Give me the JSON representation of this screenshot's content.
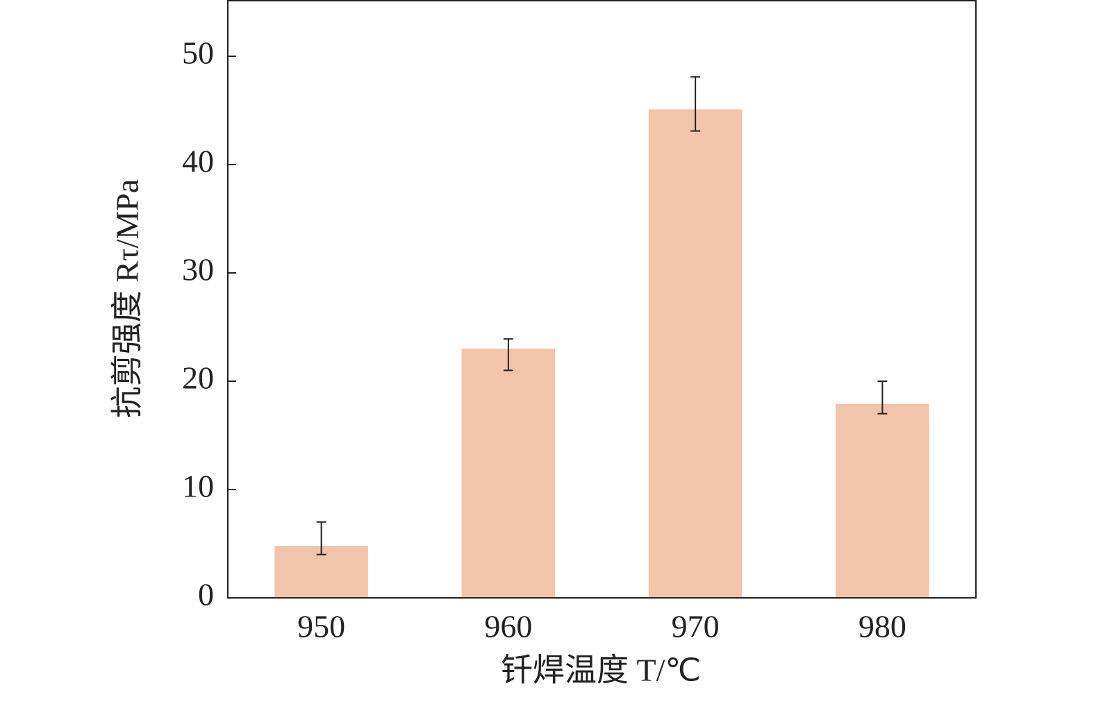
{
  "chart_data": {
    "type": "bar",
    "x_label": "钎焊温度 T/℃",
    "y_label": "抗剪强度 Rτ/MPa",
    "categories": [
      "950",
      "960",
      "970",
      "980"
    ],
    "values": [
      4.8,
      23.0,
      45.1,
      17.9
    ],
    "error_lower": [
      0.8,
      2.0,
      2.0,
      0.9
    ],
    "error_upper": [
      2.2,
      0.9,
      3.0,
      2.1
    ],
    "color": "#f2c4aa",
    "ylim": [
      0,
      55
    ],
    "yticks": [
      0,
      10,
      20,
      30,
      40,
      50
    ],
    "grid": false
  }
}
